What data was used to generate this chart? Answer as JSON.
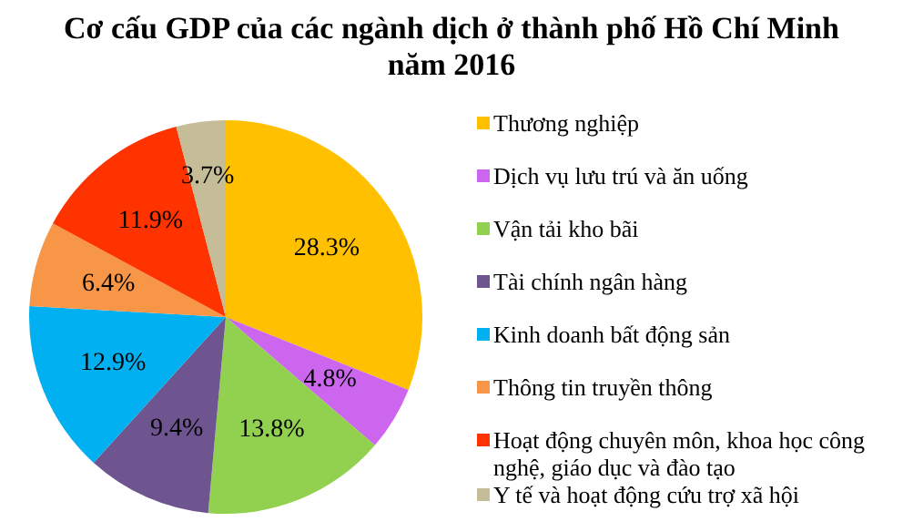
{
  "chart_data": {
    "type": "pie",
    "title": "Cơ cấu GDP của các ngành dịch ở thành phố Hồ Chí Minh năm 2016",
    "categories": [
      "Thương nghiệp",
      "Dịch vụ lưu trú và ăn uống",
      "Vận tải kho bãi",
      "Tài chính ngân hàng",
      "Kinh doanh bất động sản",
      "Thông tin truyền thông",
      "Hoạt động chuyên môn, khoa học công nghệ, giáo dục và đào tạo",
      "Y tế và hoạt động cứu trợ xã hội"
    ],
    "values": [
      28.3,
      4.8,
      13.8,
      9.4,
      12.9,
      6.4,
      11.9,
      3.7
    ],
    "value_labels": [
      "28.3%",
      "4.8%",
      "13.8%",
      "9.4%",
      "12.9%",
      "6.4%",
      "11.9%",
      "3.7%"
    ],
    "colors": [
      "#ffc000",
      "#cc66ee",
      "#92d050",
      "#6f5590",
      "#00b0f0",
      "#f79646",
      "#ff3300",
      "#c4bd97"
    ],
    "legend": "right"
  }
}
